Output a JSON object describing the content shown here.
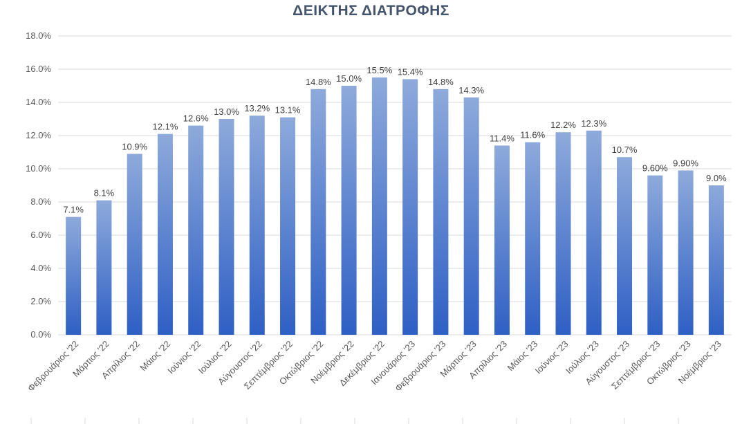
{
  "chart_data": {
    "type": "bar",
    "title": "ΔΕΙΚΤΗΣ ΔΙΑΤΡΟΦΗΣ",
    "xlabel": "",
    "ylabel": "",
    "ylim": [
      0,
      18
    ],
    "yticks": [
      "0.0%",
      "2.0%",
      "4.0%",
      "6.0%",
      "8.0%",
      "10.0%",
      "12.0%",
      "14.0%",
      "16.0%",
      "18.0%"
    ],
    "grid": true,
    "legend": "none",
    "categories": [
      "Φεβρουάριος '22",
      "Μάρτιος '22",
      "Απρίλιος '22",
      "Μάιος '22",
      "Ιούνιος '22",
      "Ιούλιος '22",
      "Αύγουστος '22",
      "Σεπτέμβριος '22",
      "Οκτώβριος '22",
      "Νοέμβριος '22",
      "Δεκέμβριος '22",
      "Ιανουάριος '23",
      "Φεβρουάριος '23",
      "Μάρτιος '23",
      "Απρίλιος '23",
      "Μάιος '23",
      "Ιούνιος '23",
      "Ιούλιος '23",
      "Αύγουστος '23",
      "Σεπτέμβριος '23",
      "Οκτώβριος '23",
      "Νοέμβριος '23"
    ],
    "values": [
      7.1,
      8.1,
      10.9,
      12.1,
      12.6,
      13.0,
      13.2,
      13.1,
      14.8,
      15.0,
      15.5,
      15.4,
      14.8,
      14.3,
      11.4,
      11.6,
      12.2,
      12.3,
      10.7,
      9.6,
      9.9,
      9.0
    ],
    "data_labels": [
      "7.1%",
      "8.1%",
      "10.9%",
      "12.1%",
      "12.6%",
      "13.0%",
      "13.2%",
      "13.1%",
      "14.8%",
      "15.0%",
      "15.5%",
      "15.4%",
      "14.8%",
      "14.3%",
      "11.4%",
      "11.6%",
      "12.2%",
      "12.3%",
      "10.7%",
      "9.60%",
      "9.90%",
      "9.0%"
    ],
    "colors": {
      "bar_top": "#8eaadb",
      "bar_bottom": "#2e5fc4",
      "grid": "#d9d9d9",
      "title": "#44546a"
    }
  }
}
